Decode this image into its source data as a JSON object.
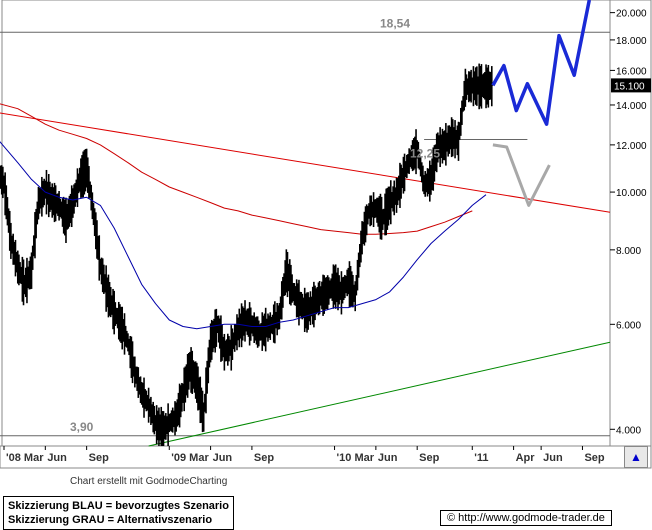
{
  "chart_data": {
    "type": "line",
    "y_axis": {
      "scale": "log",
      "range": [
        3.75,
        21
      ],
      "ticks": [
        "20.000",
        "18.000",
        "16.000",
        "14.000",
        "12.000",
        "10.000",
        "8.000",
        "6.000",
        "4.000"
      ],
      "tick_values": [
        20,
        18,
        16,
        14,
        12,
        10,
        8,
        6,
        4
      ],
      "position": "right"
    },
    "x_axis": {
      "range": [
        0,
        44
      ],
      "ticks": [
        {
          "label": "'08 Mar",
          "at": 0
        },
        {
          "label": "Jun",
          "at": 3
        },
        {
          "label": "Sep",
          "at": 6
        },
        {
          "label": "'09 Mar",
          "at": 12
        },
        {
          "label": "Jun",
          "at": 15
        },
        {
          "label": "Sep",
          "at": 18
        },
        {
          "label": "'10 Mar",
          "at": 24
        },
        {
          "label": "Jun",
          "at": 27
        },
        {
          "label": "Sep",
          "at": 30
        },
        {
          "label": "'11",
          "at": 34
        },
        {
          "label": "Apr",
          "at": 37
        },
        {
          "label": "Jun",
          "at": 39
        },
        {
          "label": "Sep",
          "at": 42
        }
      ]
    },
    "annotations": [
      {
        "text": "18,54",
        "value": 18.54
      },
      {
        "text": "12,25",
        "value": 12.25
      },
      {
        "text": "3,90",
        "value": 3.9
      }
    ],
    "last_price_label": "15.100",
    "last_price": 15.1,
    "series": [
      {
        "kind": "price",
        "color": "#000000",
        "x": [
          -0.5,
          0,
          0.5,
          1,
          1.5,
          2,
          2.5,
          3,
          3.5,
          4,
          4.5,
          5,
          5.5,
          6,
          6.5,
          7,
          7.5,
          8,
          8.5,
          9,
          9.5,
          10,
          10.5,
          11,
          11.5,
          12,
          12.5,
          13,
          13.5,
          14,
          14.5,
          15,
          15.5,
          16,
          16.5,
          17,
          17.5,
          18,
          18.5,
          19,
          19.5,
          20,
          20.5,
          21,
          21.5,
          22,
          22.5,
          23,
          23.5,
          24,
          24.5,
          25,
          25.5,
          26,
          26.5,
          27,
          27.5,
          28,
          28.5,
          29,
          29.5,
          30,
          30.5,
          31,
          31.5,
          32,
          32.5,
          33,
          33.5,
          34,
          34.5,
          35,
          35.5
        ],
        "y": [
          10.9,
          10.3,
          8.3,
          7.5,
          7.0,
          7.4,
          9.6,
          10.1,
          9.7,
          9.5,
          9.0,
          9.6,
          10.5,
          11.0,
          9.2,
          7.5,
          6.8,
          6.3,
          6.0,
          5.6,
          5.0,
          4.6,
          4.4,
          4.1,
          4.0,
          4.1,
          4.2,
          4.6,
          5.1,
          4.8,
          4.2,
          5.6,
          6.0,
          5.4,
          5.5,
          5.9,
          6.1,
          6.0,
          5.8,
          5.9,
          6.0,
          6.2,
          7.4,
          6.8,
          6.5,
          6.3,
          6.5,
          6.7,
          6.8,
          7.0,
          6.8,
          7.1,
          6.7,
          8.4,
          9.3,
          9.4,
          9.0,
          9.6,
          9.9,
          10.7,
          11.4,
          11.8,
          10.3,
          10.5,
          11.9,
          12.0,
          12.4,
          12.2,
          15.0,
          15.1,
          15.1,
          15.1,
          15.1
        ]
      },
      {
        "kind": "ma-blue",
        "color": "#0000aa",
        "x": [
          -0.5,
          1,
          2,
          3,
          4,
          5,
          6,
          7,
          8,
          9,
          10,
          11,
          12,
          13,
          14,
          15,
          16,
          17,
          18,
          19,
          20,
          21,
          22,
          23,
          24,
          25,
          26,
          27,
          28,
          29,
          30,
          31,
          32,
          33,
          34,
          35
        ],
        "y": [
          12.3,
          11.2,
          10.5,
          10.0,
          9.8,
          9.7,
          9.8,
          9.5,
          8.7,
          7.8,
          7.0,
          6.5,
          6.1,
          5.95,
          5.9,
          5.95,
          6.0,
          6.0,
          5.95,
          5.95,
          6.05,
          6.1,
          6.2,
          6.3,
          6.4,
          6.4,
          6.5,
          6.6,
          6.8,
          7.2,
          7.7,
          8.2,
          8.6,
          9.0,
          9.5,
          9.9
        ]
      },
      {
        "kind": "ma-red",
        "color": "#cc0000",
        "x": [
          -0.5,
          1,
          2,
          3,
          4,
          5,
          6,
          7,
          8,
          9,
          10,
          11,
          12,
          13,
          14,
          15,
          16,
          17,
          18,
          19,
          20,
          21,
          22,
          23,
          24,
          25,
          26,
          27,
          28,
          29,
          30,
          31,
          32,
          33,
          34
        ],
        "y": [
          14.1,
          13.8,
          13.4,
          13.0,
          12.7,
          12.5,
          12.3,
          12.0,
          11.6,
          11.2,
          10.8,
          10.5,
          10.2,
          10.0,
          9.8,
          9.6,
          9.4,
          9.3,
          9.15,
          9.05,
          8.95,
          8.85,
          8.75,
          8.65,
          8.6,
          8.55,
          8.5,
          8.5,
          8.52,
          8.55,
          8.6,
          8.75,
          8.9,
          9.1,
          9.3
        ]
      },
      {
        "kind": "trend-red",
        "color": "#dd0000",
        "x": [
          -0.5,
          44
        ],
        "y": [
          13.6,
          9.25
        ]
      },
      {
        "kind": "trend-green",
        "color": "#008800",
        "x": [
          10.5,
          44
        ],
        "y": [
          3.75,
          5.6
        ]
      },
      {
        "kind": "level",
        "color": "#666666",
        "x": [
          -0.5,
          44
        ],
        "y": [
          18.54,
          18.54
        ]
      },
      {
        "kind": "level",
        "color": "#666666",
        "x": [
          -0.5,
          44
        ],
        "y": [
          3.9,
          3.9
        ]
      },
      {
        "kind": "level",
        "color": "#666666",
        "x": [
          30.5,
          38
        ],
        "y": [
          12.25,
          12.25
        ]
      },
      {
        "kind": "scenario-blue",
        "name": "Skizzierung BLAU = bevorzugtes Szenario",
        "color": "#1a2ad6",
        "x": [
          35.5,
          36.3,
          37.2,
          38.0,
          39.4,
          40.3,
          41.4,
          42.5
        ],
        "y": [
          15.1,
          16.3,
          13.7,
          15.2,
          13.0,
          18.3,
          15.7,
          21.0
        ]
      },
      {
        "kind": "scenario-grey",
        "name": "Skizzierung GRAU = Alternativszenario",
        "color": "#a8a8a8",
        "x": [
          35.5,
          36.5,
          38.1,
          39.6
        ],
        "y": [
          12.0,
          11.9,
          9.5,
          11.1
        ]
      }
    ]
  },
  "footer": {
    "credit": "Chart erstellt mit GodmodeCharting",
    "legend_blue": "Skizzierung BLAU = bevorzugtes Szenario",
    "legend_grey": "Skizzierung GRAU = Alternativszenario",
    "url": "© http://www.godmode-trader.de",
    "nav_icon": "chart-nav-icon"
  }
}
